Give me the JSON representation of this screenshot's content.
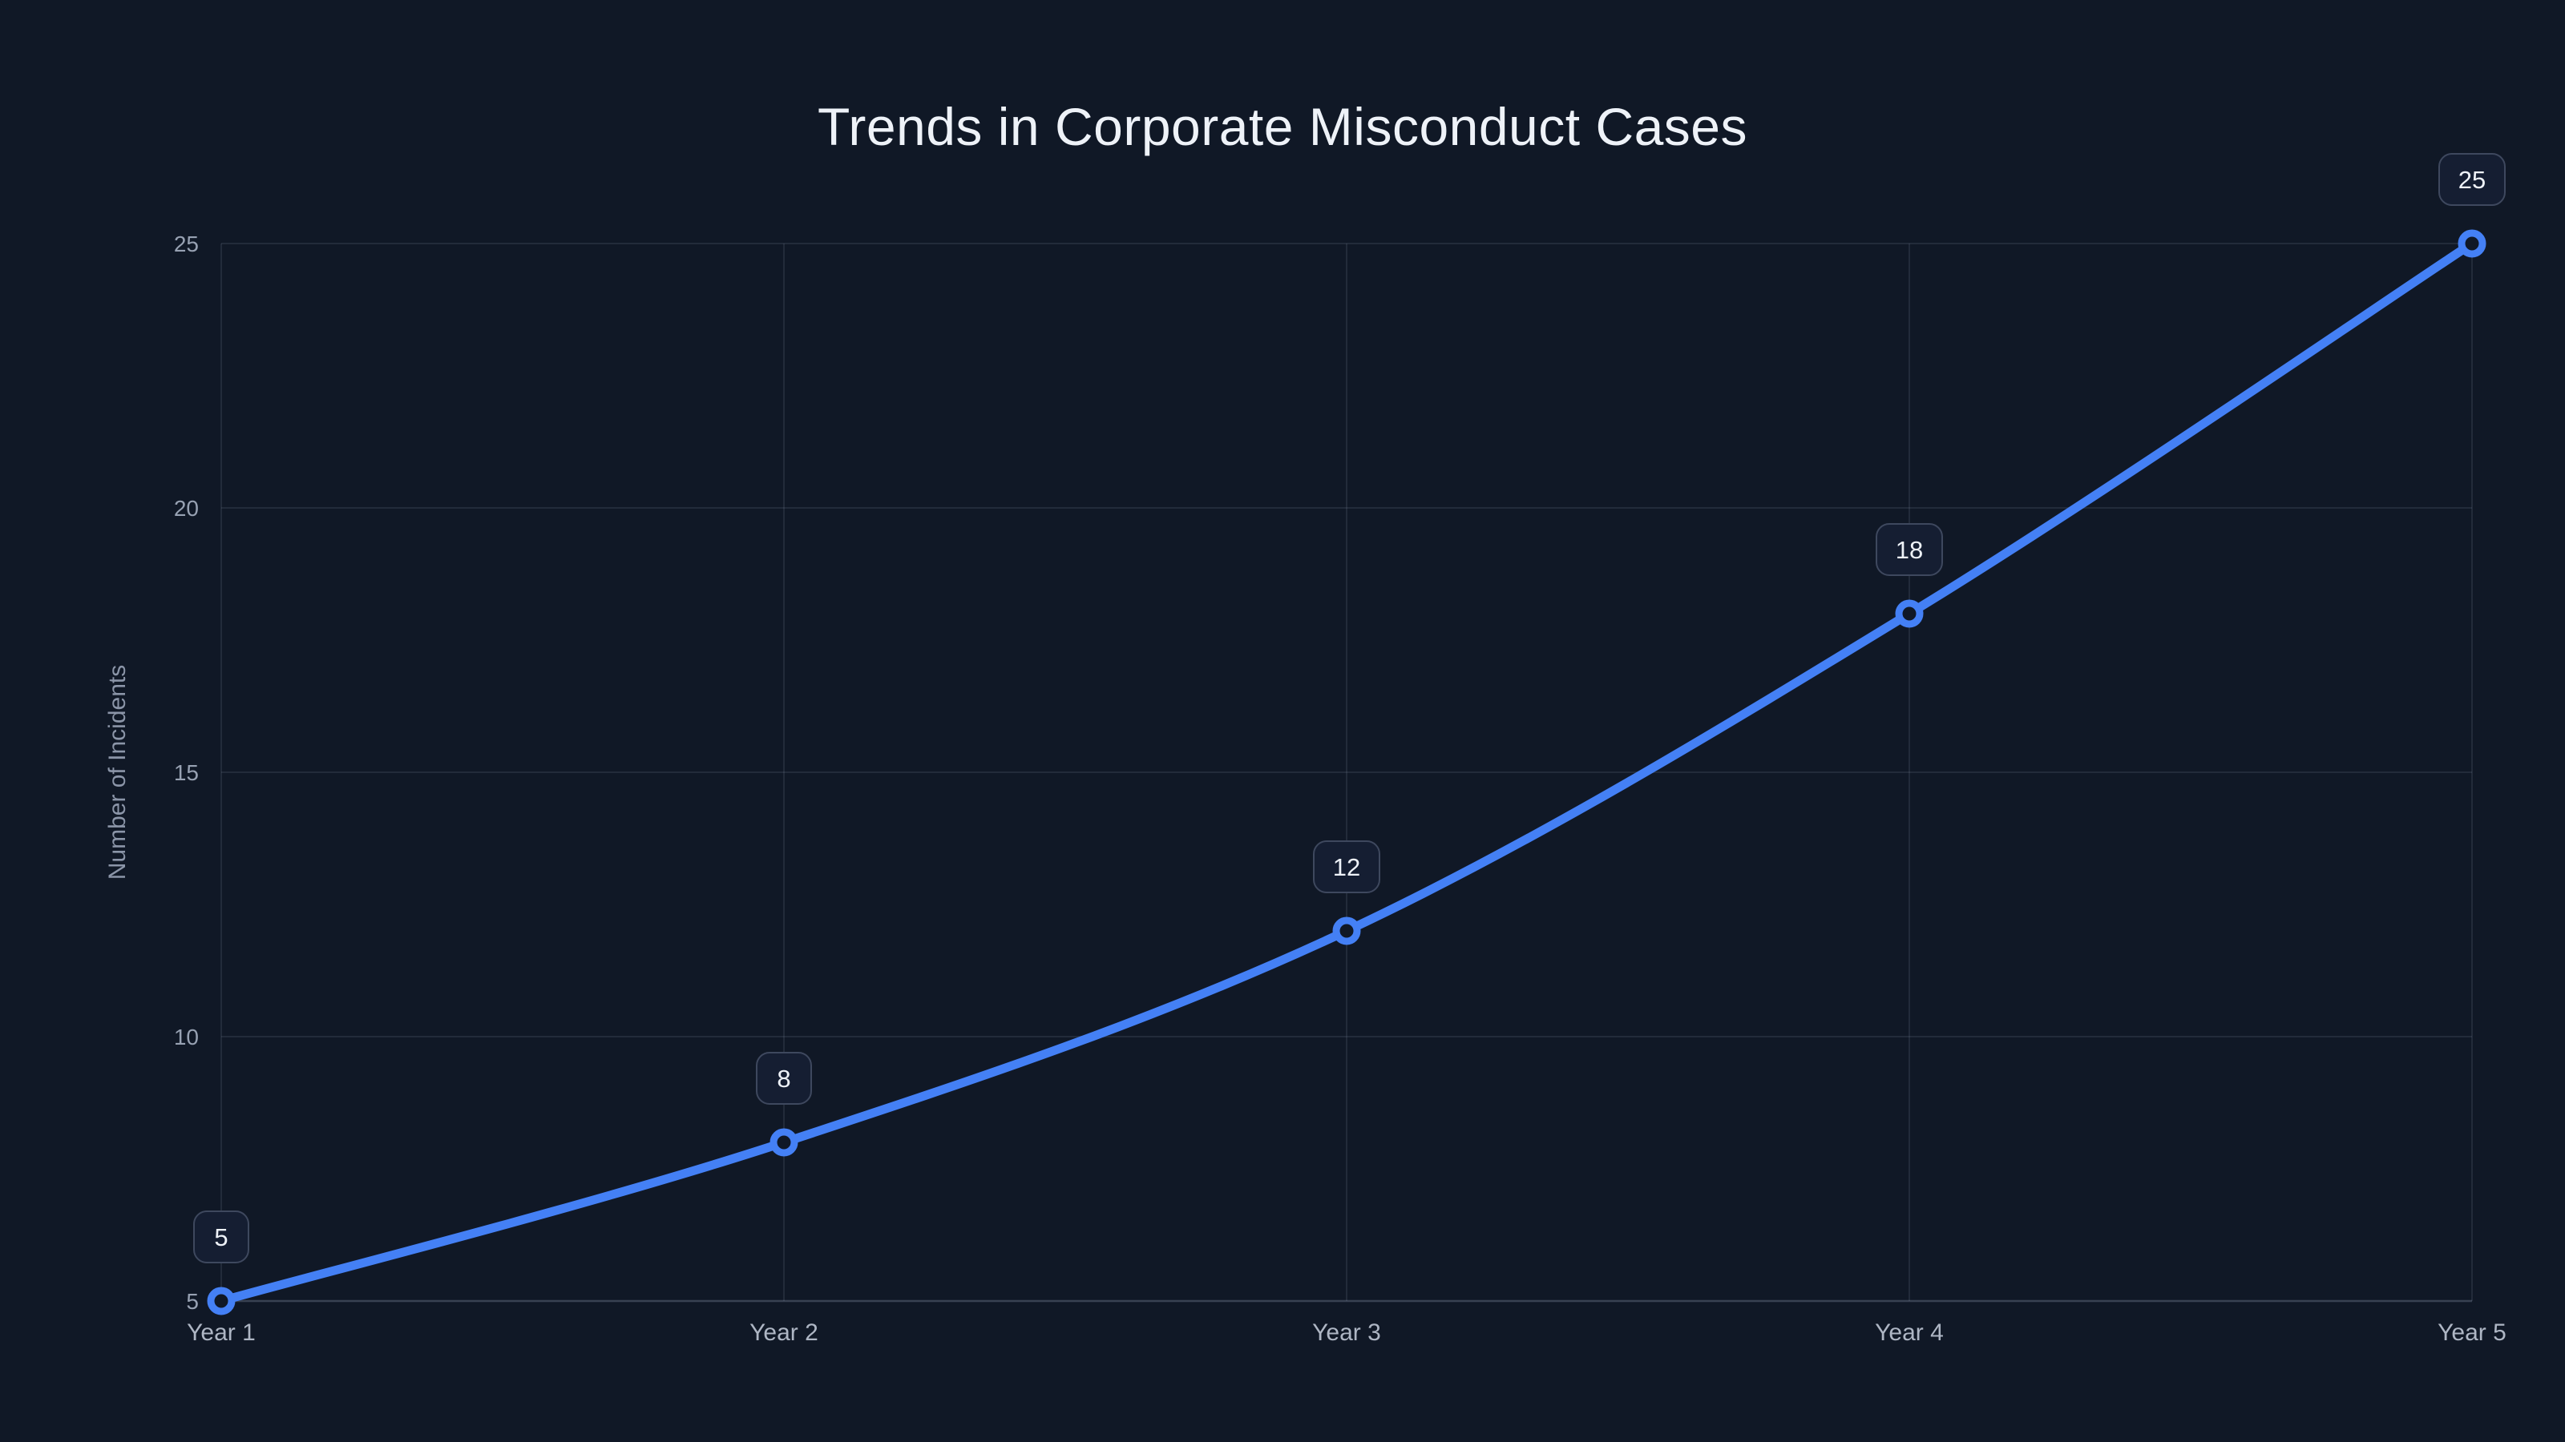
{
  "chart_data": {
    "type": "line",
    "title": "Trends in Corporate Misconduct Cases",
    "xlabel": "",
    "ylabel": "Number of Incidents",
    "categories": [
      "Year 1",
      "Year 2",
      "Year 3",
      "Year 4",
      "Year 5"
    ],
    "values": [
      5,
      8,
      12,
      18,
      25
    ],
    "point_labels": [
      "5",
      "8",
      "12",
      "18",
      "25"
    ],
    "ylim": [
      5,
      25
    ],
    "yticks": [
      5,
      10,
      15,
      20,
      25
    ],
    "grid": true,
    "legend": false,
    "line_smoothing": true,
    "colors": {
      "background": "#101826",
      "line": "#4480f5",
      "marker_stroke": "#4480f5",
      "marker_fill": "#101826",
      "grid": "rgba(148,163,184,0.14)",
      "axis": "rgba(148,163,184,0.30)",
      "y_tick_text": "#97a1b2",
      "x_tick_text": "#aeb6c4",
      "title_text": "#eef2f8",
      "badge_fill": "#151e32",
      "badge_border": "#3e485e",
      "badge_text": "#eef2f8"
    }
  }
}
